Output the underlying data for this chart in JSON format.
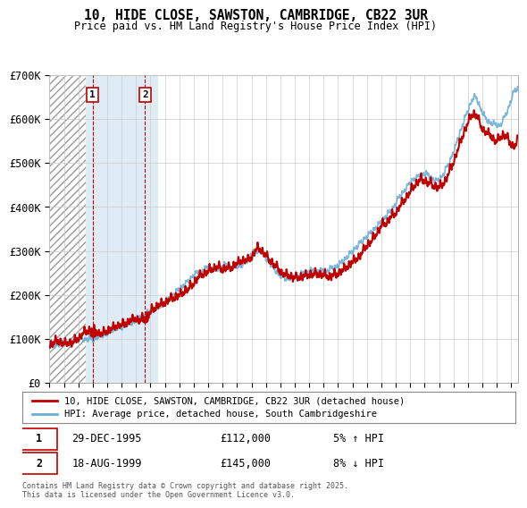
{
  "title": "10, HIDE CLOSE, SAWSTON, CAMBRIDGE, CB22 3UR",
  "subtitle": "Price paid vs. HM Land Registry's House Price Index (HPI)",
  "ylim": [
    0,
    700000
  ],
  "yticks": [
    0,
    100000,
    200000,
    300000,
    400000,
    500000,
    600000,
    700000
  ],
  "ytick_labels": [
    "£0",
    "£100K",
    "£200K",
    "£300K",
    "£400K",
    "£500K",
    "£600K",
    "£700K"
  ],
  "xlim_start": 1993.0,
  "xlim_end": 2025.5,
  "hpi_color": "#6aaed6",
  "price_color": "#c00000",
  "sale1_date": 1995.99,
  "sale1_price": 112000,
  "sale2_date": 1999.63,
  "sale2_price": 145000,
  "legend_price_label": "10, HIDE CLOSE, SAWSTON, CAMBRIDGE, CB22 3UR (detached house)",
  "legend_hpi_label": "HPI: Average price, detached house, South Cambridgeshire",
  "annotation1_date": "29-DEC-1995",
  "annotation1_price": "£112,000",
  "annotation1_hpi": "5% ↑ HPI",
  "annotation2_date": "18-AUG-1999",
  "annotation2_price": "£145,000",
  "annotation2_hpi": "8% ↓ HPI",
  "footer": "Contains HM Land Registry data © Crown copyright and database right 2025.\nThis data is licensed under the Open Government Licence v3.0.",
  "hatch_end": 1995.5,
  "shade_start": 1995.5,
  "shade_end": 2000.5,
  "background_color": "#ffffff",
  "grid_color": "#cccccc",
  "marker_box_color": "#c00000"
}
